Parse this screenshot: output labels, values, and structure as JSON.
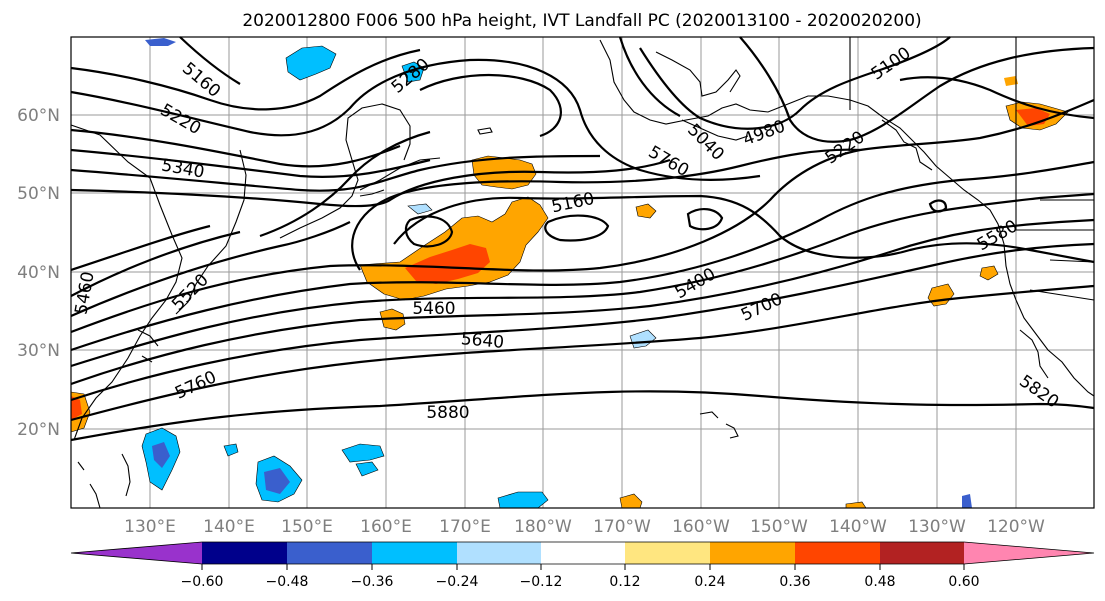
{
  "title": "2020012800 F006 500 hPa height, IVT Landfall PC (2020013100 - 2020020200)",
  "map": {
    "lat_labels": [
      "60°N",
      "50°N",
      "40°N",
      "30°N",
      "20°N"
    ],
    "lon_labels": [
      "130°E",
      "140°E",
      "150°E",
      "160°E",
      "170°E",
      "180°W",
      "170°W",
      "160°W",
      "150°W",
      "140°W",
      "130°W",
      "120°W"
    ],
    "contour_labels": [
      "5160",
      "5280",
      "5220",
      "5340",
      "5100",
      "4980",
      "5040",
      "5220",
      "5160",
      "5760",
      "5580",
      "5400",
      "5460",
      "5520",
      "5700",
      "5640",
      "5460",
      "5760",
      "5880",
      "5820"
    ]
  },
  "colorbar": {
    "tick_labels": [
      "−0.60",
      "−0.48",
      "−0.36",
      "−0.24",
      "−0.12",
      "0.12",
      "0.24",
      "0.36",
      "0.48",
      "0.60"
    ],
    "colors": [
      "#9932cc",
      "#00008b",
      "#3a5fcd",
      "#00bfff",
      "#b0e0ff",
      "#ffffff",
      "#ffe680",
      "#ffa500",
      "#ff4500",
      "#b22222",
      "#ff85b0"
    ]
  }
}
